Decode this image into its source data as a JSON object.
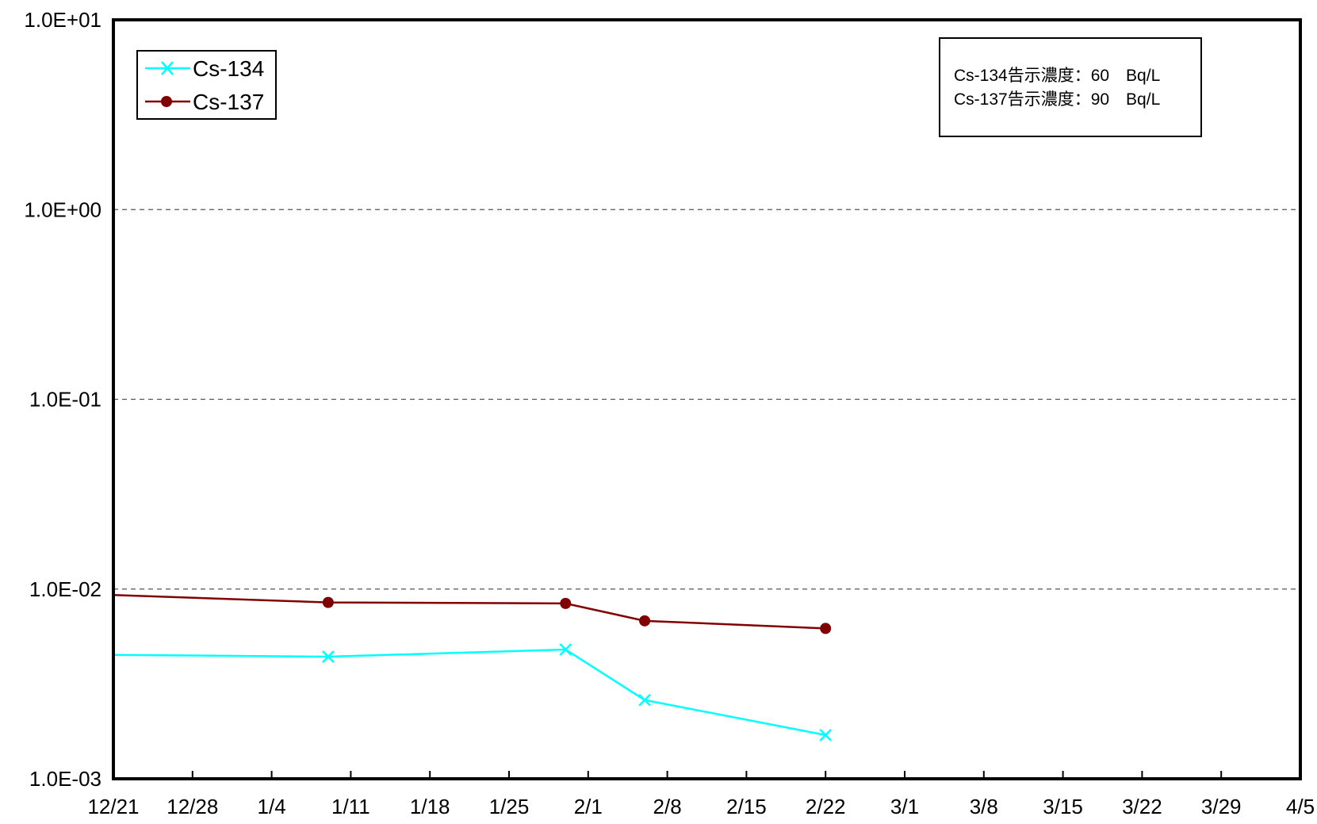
{
  "chart_data": {
    "type": "line",
    "y_scale": "log",
    "ylim": [
      0.001,
      10
    ],
    "y_ticks": [
      "1.0E-03",
      "1.0E-02",
      "1.0E-01",
      "1.0E+00",
      "1.0E+01"
    ],
    "x_ticks": [
      "12/21",
      "12/28",
      "1/4",
      "1/11",
      "1/18",
      "1/25",
      "2/1",
      "2/8",
      "2/15",
      "2/22",
      "3/1",
      "3/8",
      "3/15",
      "3/22",
      "3/29",
      "4/5"
    ],
    "grid": "horizontal dashed",
    "legend_position": "top-left",
    "series": [
      {
        "name": "Cs-134",
        "color": "#00ffff",
        "marker": "x",
        "x": [
          "12/21",
          "1/9",
          "1/30",
          "2/6",
          "2/22"
        ],
        "values": [
          0.0045,
          0.0044,
          0.0048,
          0.0026,
          0.0017
        ]
      },
      {
        "name": "Cs-137",
        "color": "#800000",
        "marker": "circle",
        "x": [
          "12/21",
          "1/9",
          "1/30",
          "2/6",
          "2/22"
        ],
        "values": [
          0.0093,
          0.0085,
          0.0084,
          0.0068,
          0.0062
        ]
      }
    ],
    "annotation": {
      "lines": [
        "Cs-134告示濃度：60　Bq/L",
        "Cs-137告示濃度：90　Bq/L"
      ]
    }
  }
}
